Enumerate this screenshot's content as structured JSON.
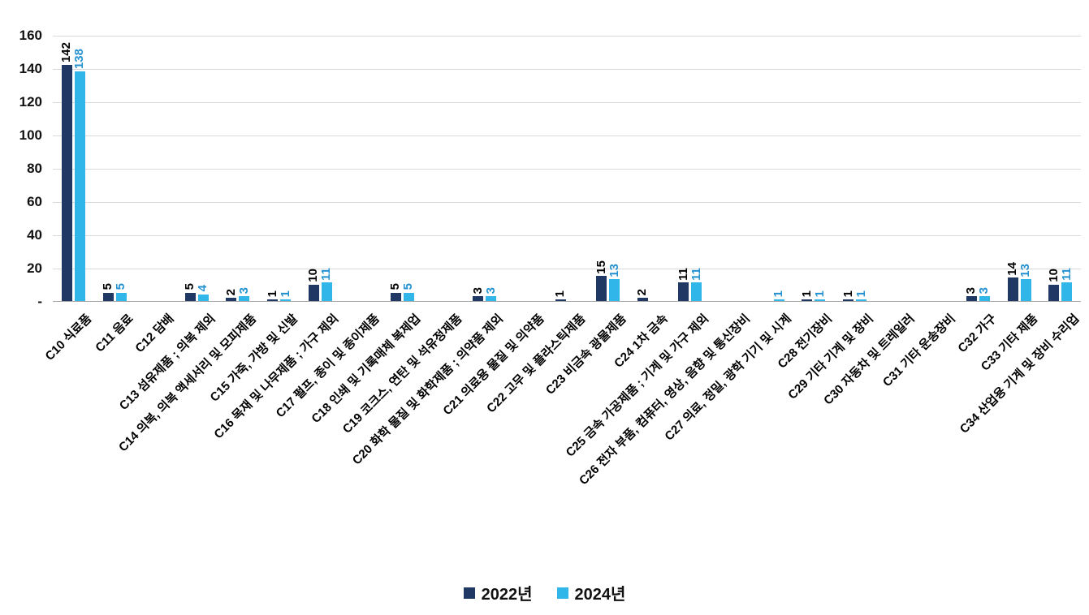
{
  "chart_data": {
    "type": "bar",
    "title": "",
    "xlabel": "",
    "ylabel": "",
    "grid": true,
    "legend_position": "bottom",
    "ylim": [
      0,
      160
    ],
    "yticks": [
      {
        "value": 0,
        "label": "-"
      },
      {
        "value": 20,
        "label": "20"
      },
      {
        "value": 40,
        "label": "40"
      },
      {
        "value": 60,
        "label": "60"
      },
      {
        "value": 80,
        "label": "80"
      },
      {
        "value": 100,
        "label": "100"
      },
      {
        "value": 120,
        "label": "120"
      },
      {
        "value": 140,
        "label": "140"
      },
      {
        "value": 160,
        "label": "160"
      }
    ],
    "categories": [
      "C10 식료품",
      "C11 음료",
      "C12 담배",
      "C13 섬유제품 ; 의복 제외",
      "C14 의복, 의복 액세서리 및 모피제품",
      "C15 가죽, 가방 및 신발",
      "C16 목재 및 나무제품 ; 가구 제외",
      "C17 펄프, 종이 및 종이제품",
      "C18 인쇄 및 기록매체 복제업",
      "C19 코크스, 연탄 및 석유정제품",
      "C20 화학 물질 및 화학제품 ; 의약품 제외",
      "C21 의료용 물질 및 의약품",
      "C22 고무 및 플라스틱제품",
      "C23 비금속 광물제품",
      "C24 1차 금속",
      "C25 금속 가공제품 ; 기계 및 가구 제외",
      "C26 전자 부품, 컴퓨터, 영상, 음향 및 통신장비",
      "C27 의료, 정밀, 광학 기기 및 시계",
      "C28 전기장비",
      "C29 기타 기계 및 장비",
      "C30 자동차 및 트레일러",
      "C31 기타 운송장비",
      "C32 가구",
      "C33 기타 제품",
      "C34 산업용 기계 및 장비 수리업"
    ],
    "series": [
      {
        "name": "2022년",
        "color": "#1f3864",
        "label_color": "#000000",
        "values": [
          142,
          5,
          null,
          5,
          2,
          1,
          10,
          null,
          5,
          null,
          3,
          null,
          1,
          15,
          2,
          11,
          null,
          null,
          1,
          1,
          null,
          null,
          3,
          14,
          10
        ]
      },
      {
        "name": "2024년",
        "color": "#30b6e8",
        "label_color": "#2492d0",
        "values": [
          138,
          5,
          null,
          4,
          3,
          1,
          11,
          null,
          5,
          null,
          3,
          null,
          null,
          13,
          null,
          11,
          null,
          1,
          1,
          1,
          null,
          null,
          3,
          13,
          11
        ]
      }
    ]
  }
}
